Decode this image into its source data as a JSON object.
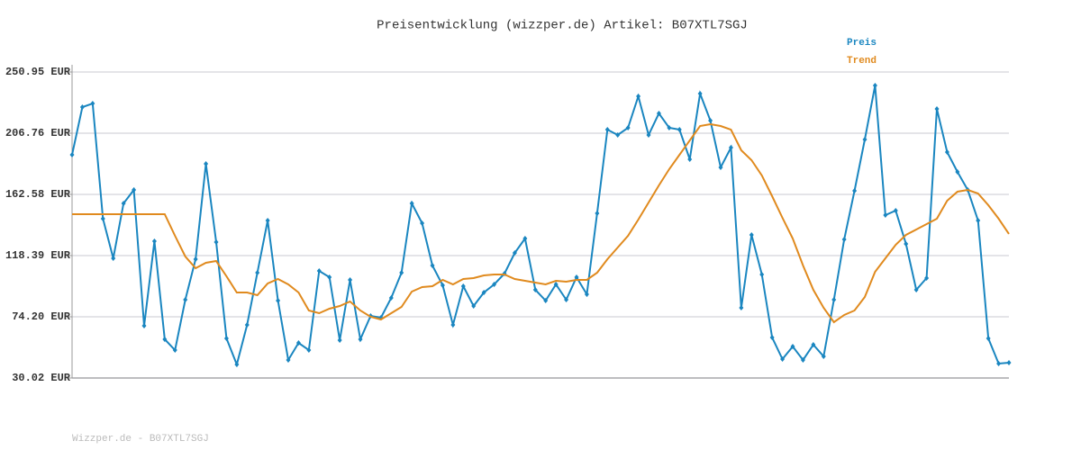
{
  "chart_data": {
    "type": "line",
    "title": "Preisentwicklung (wizzper.de) Artikel: B07XTL7SGJ",
    "footer": "Wizzper.de - B07XTL7SGJ",
    "ylim": [
      30.02,
      250.95
    ],
    "yticks": [
      {
        "value": 30.02,
        "label": "30.02 EUR"
      },
      {
        "value": 74.2,
        "label": "74.20 EUR"
      },
      {
        "value": 118.39,
        "label": "118.39 EUR"
      },
      {
        "value": 162.58,
        "label": "162.58 EUR"
      },
      {
        "value": 206.76,
        "label": "206.76 EUR"
      },
      {
        "value": 250.95,
        "label": "250.95 EUR"
      }
    ],
    "grid": true,
    "legend": "top-right",
    "series": [
      {
        "name": "Preis",
        "color": "#1a86c0",
        "markers": true,
        "values": [
          191.17,
          225.61,
          228.21,
          145.03,
          116.44,
          156.08,
          165.83,
          67.71,
          128.79,
          57.96,
          50.16,
          86.55,
          115.79,
          184.67,
          128.14,
          58.61,
          39.77,
          68.36,
          106.05,
          143.74,
          85.9,
          43.02,
          55.36,
          50.16,
          107.35,
          102.8,
          57.31,
          100.85,
          57.96,
          74.86,
          73.56,
          87.85,
          106.05,
          156.08,
          141.79,
          111.25,
          96.95,
          68.36,
          96.3,
          82.0,
          91.75,
          97.6,
          105.4,
          120.34,
          130.74,
          93.7,
          85.9,
          97.6,
          86.55,
          102.8,
          90.45,
          148.93,
          209.36,
          205.47,
          210.66,
          233.41,
          205.47,
          221.06,
          210.66,
          209.36,
          187.92,
          235.36,
          215.86,
          182.07,
          196.37,
          80.7,
          133.34,
          104.75,
          59.26,
          43.67,
          52.76,
          43.02,
          54.06,
          45.62,
          86.55,
          130.09,
          165.18,
          202.22,
          241.21,
          147.63,
          150.88,
          126.84,
          93.7,
          102.15,
          224.31,
          193.12,
          178.82,
          165.83,
          143.74,
          58.61,
          40.42,
          41.07
        ]
      },
      {
        "name": "Trend",
        "color": "#e08a1e",
        "markers": false,
        "values": [
          148.28,
          148.28,
          148.28,
          148.28,
          148.28,
          148.28,
          148.28,
          148.28,
          148.28,
          148.28,
          132.69,
          117.74,
          109.3,
          113.19,
          114.49,
          103.45,
          91.75,
          91.75,
          89.8,
          98.25,
          101.5,
          97.6,
          91.75,
          78.76,
          76.81,
          80.05,
          82.0,
          85.25,
          78.76,
          74.21,
          72.26,
          76.81,
          81.35,
          92.4,
          95.65,
          96.3,
          100.85,
          97.6,
          101.5,
          102.15,
          104.1,
          104.75,
          104.75,
          101.5,
          100.2,
          98.9,
          97.6,
          100.2,
          99.55,
          100.85,
          100.85,
          106.05,
          115.79,
          124.24,
          132.69,
          144.38,
          156.73,
          169.08,
          180.77,
          191.17,
          201.57,
          211.96,
          213.26,
          211.96,
          209.36,
          194.42,
          187.27,
          176.23,
          161.28,
          145.68,
          130.74,
          111.25,
          93.7,
          80.7,
          70.31,
          75.51,
          78.76,
          88.5,
          106.7,
          116.44,
          126.19,
          133.34,
          137.24,
          141.14,
          145.03,
          158.03,
          164.53,
          165.83,
          163.23,
          154.78,
          145.03,
          133.99
        ]
      }
    ]
  }
}
